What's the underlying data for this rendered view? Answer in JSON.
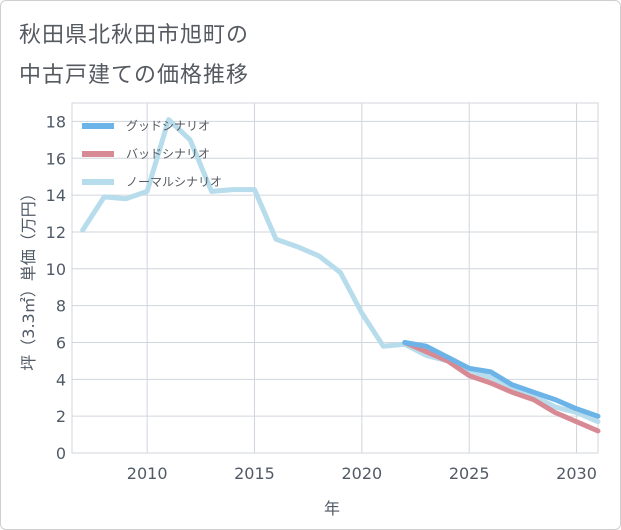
{
  "title_lines": [
    "秋田県北秋田市旭町の",
    "中古戸建ての価格推移"
  ],
  "chart_data": {
    "type": "line",
    "xlabel": "年",
    "ylabel": "坪（3.3㎡）単価（万円）",
    "xlim": [
      2006.5,
      2031
    ],
    "ylim": [
      0,
      19
    ],
    "x_ticks": [
      2010,
      2015,
      2020,
      2025,
      2030
    ],
    "y_ticks": [
      0,
      2,
      4,
      6,
      8,
      10,
      12,
      14,
      16,
      18
    ],
    "grid": true,
    "legend_position": "top-left",
    "series": [
      {
        "name": "グッドシナリオ",
        "color": "#6cb4e8",
        "x": [
          2022,
          2023,
          2024,
          2025,
          2026,
          2027,
          2028,
          2029,
          2030,
          2031
        ],
        "y": [
          6.0,
          5.8,
          5.2,
          4.6,
          4.4,
          3.7,
          3.3,
          2.9,
          2.4,
          2.0
        ]
      },
      {
        "name": "バッドシナリオ",
        "color": "#d88a94",
        "x": [
          2022,
          2023,
          2024,
          2025,
          2026,
          2027,
          2028,
          2029,
          2030,
          2031
        ],
        "y": [
          6.0,
          5.5,
          5.0,
          4.2,
          3.8,
          3.3,
          2.9,
          2.2,
          1.7,
          1.2
        ]
      },
      {
        "name": "ノーマルシナリオ",
        "color": "#b7dcec",
        "x": [
          2007,
          2008,
          2009,
          2010,
          2011,
          2012,
          2013,
          2014,
          2015,
          2016,
          2017,
          2018,
          2019,
          2020,
          2021,
          2022,
          2023,
          2024,
          2025,
          2026,
          2027,
          2028,
          2029,
          2030,
          2031
        ],
        "y": [
          12.1,
          13.9,
          13.8,
          14.2,
          18.1,
          17.0,
          14.2,
          14.3,
          14.3,
          11.6,
          11.2,
          10.7,
          9.8,
          7.6,
          5.8,
          5.9,
          5.3,
          5.0,
          4.5,
          4.1,
          3.6,
          3.1,
          2.5,
          2.2,
          1.7
        ]
      }
    ]
  }
}
